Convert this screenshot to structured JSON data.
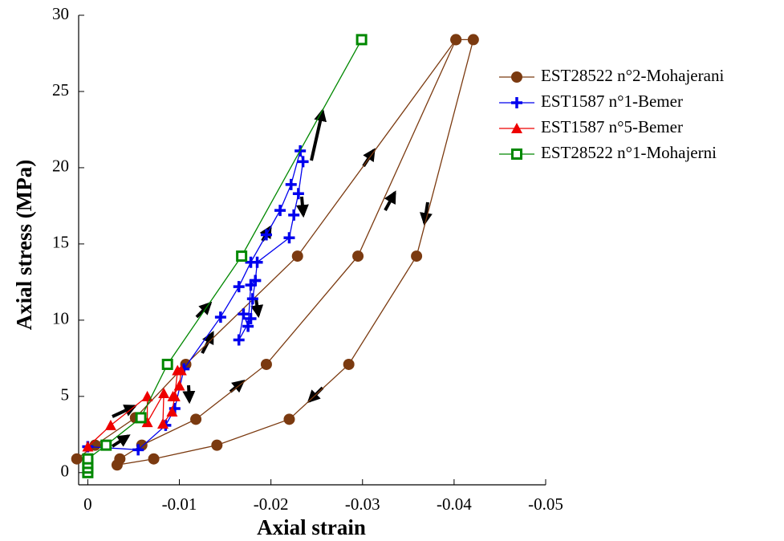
{
  "chart_data": {
    "type": "line",
    "x_label": "Axial strain",
    "y_label": "Axial stress (MPa)",
    "xlim": [
      0.001,
      -0.05
    ],
    "ylim": [
      -0.8,
      30
    ],
    "xticks": [
      0,
      -0.01,
      -0.02,
      -0.03,
      -0.04,
      -0.05
    ],
    "yticks": [
      0,
      5,
      10,
      15,
      20,
      25,
      30
    ],
    "legend": "right",
    "series": [
      {
        "name": "EST28522 n°2-Mohajerani",
        "color": "#7b3a10",
        "marker": "circle",
        "x": [
          0.0012,
          -0.0008,
          -0.0052,
          -0.0107,
          -0.0229,
          -0.0402,
          -0.0421,
          -0.0359,
          -0.0285,
          -0.022,
          -0.0141,
          -0.0072,
          -0.0032,
          -0.0035,
          -0.0059,
          -0.0118,
          -0.0195,
          -0.0295,
          -0.0402
        ],
        "values": [
          0.9,
          1.8,
          3.6,
          7.1,
          14.2,
          28.4,
          28.4,
          14.2,
          7.1,
          3.5,
          1.8,
          0.9,
          0.5,
          0.9,
          1.8,
          3.5,
          7.1,
          14.2,
          28.4
        ]
      },
      {
        "name": "EST1587 n°1-Bemer",
        "color": "#0000ee",
        "marker": "plus",
        "x": [
          0,
          -0.0055,
          -0.0085,
          -0.0095,
          -0.0105,
          -0.0145,
          -0.0165,
          -0.0178,
          -0.0195,
          -0.021,
          -0.0222,
          -0.0232,
          -0.0235,
          -0.023,
          -0.0225,
          -0.022,
          -0.0185,
          -0.0183,
          -0.018,
          -0.0178,
          -0.0165,
          -0.017,
          -0.0175,
          -0.0178,
          -0.0183
        ],
        "values": [
          1.7,
          1.5,
          3.1,
          4.2,
          6.8,
          10.2,
          12.2,
          13.8,
          15.6,
          17.2,
          18.9,
          21.1,
          20.4,
          18.3,
          16.9,
          15.4,
          13.8,
          12.6,
          11.4,
          10.1,
          8.7,
          10.4,
          9.6,
          12.3,
          12.6
        ]
      },
      {
        "name": "EST1587 n°5-Bemer",
        "color": "#ee0000",
        "marker": "triangle",
        "x": [
          0,
          -0.0025,
          -0.0065,
          -0.0065,
          -0.0083,
          -0.0082,
          -0.0092,
          -0.0095,
          -0.0098,
          -0.0102,
          -0.01,
          -0.0093
        ],
        "values": [
          1.7,
          3.1,
          5.0,
          3.3,
          5.2,
          3.2,
          4.0,
          5.0,
          6.7,
          6.7,
          5.7,
          5.0
        ]
      },
      {
        "name": "EST28522 n°1-Mohajerni",
        "color": "#008800",
        "marker": "square",
        "x": [
          0,
          0,
          0,
          0,
          -0.002,
          -0.0058,
          -0.0087,
          -0.0168,
          -0.0299
        ],
        "values": [
          0.0,
          0.3,
          0.6,
          0.9,
          1.8,
          3.6,
          7.1,
          14.2,
          28.4
        ]
      }
    ]
  }
}
